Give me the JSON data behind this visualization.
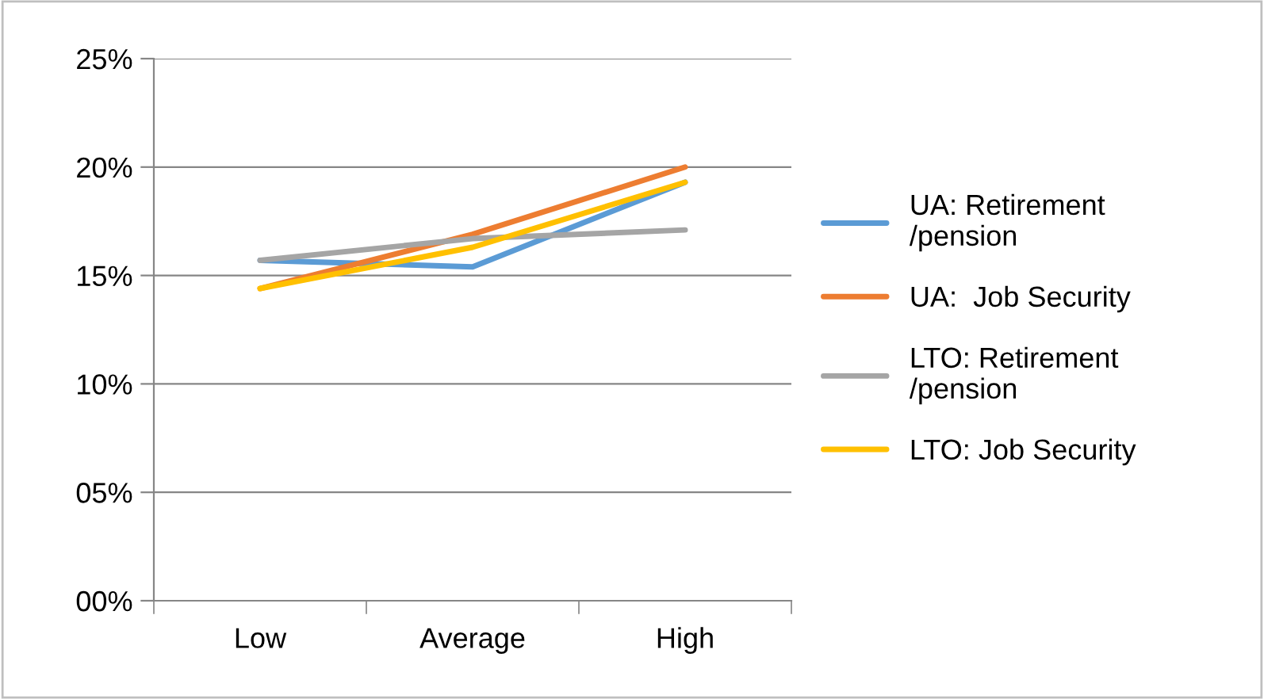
{
  "chart_data": {
    "type": "line",
    "categories": [
      "Low",
      "Average",
      "High"
    ],
    "series": [
      {
        "name": "UA: Retirement\n/pension",
        "color": "#5b9bd5",
        "values": [
          15.7,
          15.4,
          19.3
        ]
      },
      {
        "name": "UA:  Job Security",
        "color": "#ed7d31",
        "values": [
          14.4,
          16.9,
          20.0
        ]
      },
      {
        "name": "LTO: Retirement\n/pension",
        "color": "#a5a5a5",
        "values": [
          15.7,
          16.7,
          17.1
        ]
      },
      {
        "name": "LTO: Job Security",
        "color": "#ffc000",
        "values": [
          14.4,
          16.3,
          19.3
        ]
      }
    ],
    "ylim": [
      0,
      25
    ],
    "yticks": [
      {
        "value": 0,
        "label": "00%"
      },
      {
        "value": 5,
        "label": "05%"
      },
      {
        "value": 10,
        "label": "10%"
      },
      {
        "value": 15,
        "label": "15%"
      },
      {
        "value": 20,
        "label": "20%"
      },
      {
        "value": 25,
        "label": "25%"
      }
    ],
    "grid": "y",
    "legend": "right",
    "marker": "none",
    "line_style": "solid"
  }
}
